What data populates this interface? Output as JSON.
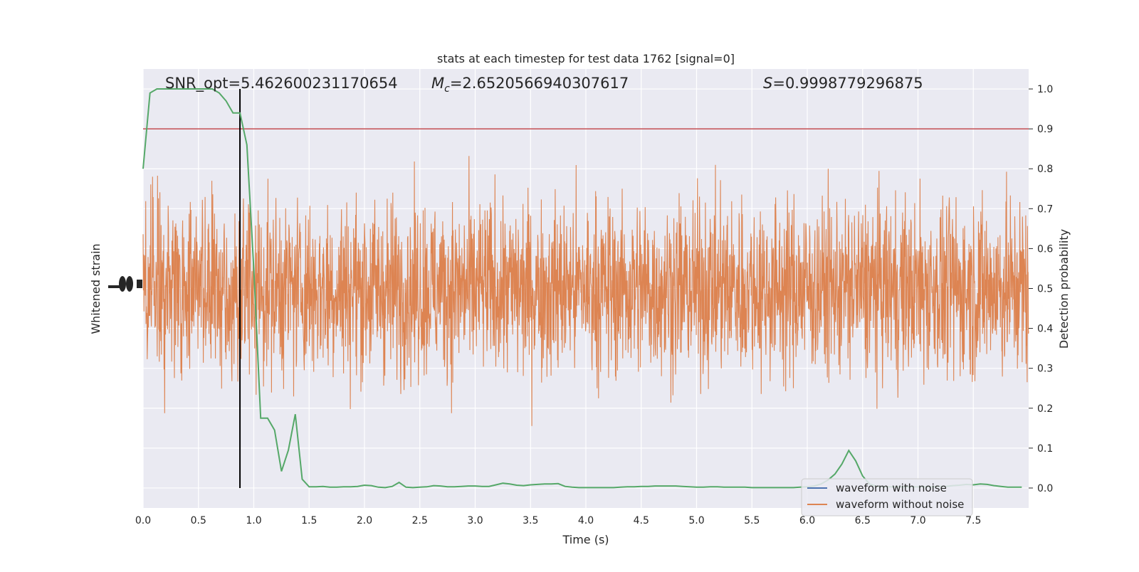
{
  "chart_data": {
    "type": "line",
    "title": "stats at each timestep for test data 1762 [signal=0]",
    "xlabel": "Time (s)",
    "ylabel_left": "Whitened strain",
    "ylabel_right": "Detection probability",
    "xlim": [
      0.0,
      8.0
    ],
    "ylim_right": [
      -0.05,
      1.05
    ],
    "xticks": [
      0.0,
      0.5,
      1.0,
      1.5,
      2.0,
      2.5,
      3.0,
      3.5,
      4.0,
      4.5,
      5.0,
      5.5,
      6.0,
      6.5,
      7.0,
      7.5
    ],
    "yticks_right": [
      0.0,
      0.1,
      0.2,
      0.3,
      0.4,
      0.5,
      0.6,
      0.7,
      0.8,
      0.9,
      1.0
    ],
    "annotations": {
      "snr": "SNR_opt=5.462600231170654",
      "mc_symbol": "M",
      "mc_sub": "c",
      "mc_value": "=2.6520566940307617",
      "s_symbol": "S",
      "s_value": "=0.9998779296875"
    },
    "threshold": 0.9,
    "marker_time": 0.875,
    "grid": true,
    "legend_position": "bottom-right",
    "series": [
      {
        "name": "waveform with noise",
        "color": "#4c72b0"
      },
      {
        "name": "waveform without noise",
        "color": "#dd8452"
      },
      {
        "color": "#55a868",
        "x": [
          0.0,
          0.0625,
          0.125,
          0.1875,
          0.25,
          0.3125,
          0.375,
          0.4375,
          0.5,
          0.5625,
          0.625,
          0.6875,
          0.75,
          0.8125,
          0.875,
          0.9375,
          1.0,
          1.0625,
          1.125,
          1.1875,
          1.25,
          1.3125,
          1.375,
          1.4375,
          1.5,
          1.5625,
          1.625,
          1.6875,
          1.75,
          1.8125,
          1.875,
          1.9375,
          2.0,
          2.0625,
          2.125,
          2.1875,
          2.25,
          2.3125,
          2.375,
          2.4375,
          2.5,
          2.5625,
          2.625,
          2.6875,
          2.75,
          2.8125,
          2.875,
          2.9375,
          3.0,
          3.0625,
          3.125,
          3.1875,
          3.25,
          3.3125,
          3.375,
          3.4375,
          3.5,
          3.5625,
          3.625,
          3.6875,
          3.75,
          3.8125,
          3.875,
          3.9375,
          4.0,
          4.0625,
          4.125,
          4.1875,
          4.25,
          4.3125,
          4.375,
          4.4375,
          4.5,
          4.5625,
          4.625,
          4.6875,
          4.75,
          4.8125,
          4.875,
          4.9375,
          5.0,
          5.0625,
          5.125,
          5.1875,
          5.25,
          5.3125,
          5.375,
          5.4375,
          5.5,
          5.5625,
          5.625,
          5.6875,
          5.75,
          5.8125,
          5.875,
          5.9375,
          6.0,
          6.0625,
          6.125,
          6.1875,
          6.25,
          6.3125,
          6.375,
          6.4375,
          6.5,
          6.5625,
          6.625,
          6.6875,
          6.75,
          6.8125,
          6.875,
          6.9375,
          7.0,
          7.0625,
          7.125,
          7.1875,
          7.25,
          7.3125,
          7.375,
          7.4375,
          7.5,
          7.5625,
          7.625,
          7.6875,
          7.75,
          7.8125,
          7.875,
          7.9375
        ],
        "values": [
          0.8,
          0.99,
          1.0,
          1.0,
          1.0,
          1.0,
          1.0,
          1.0,
          1.0,
          1.0,
          1.0,
          0.99,
          0.97,
          0.94,
          0.94,
          0.86,
          0.55,
          0.175,
          0.175,
          0.145,
          0.042,
          0.095,
          0.185,
          0.022,
          0.003,
          0.003,
          0.004,
          0.002,
          0.002,
          0.003,
          0.003,
          0.004,
          0.007,
          0.006,
          0.002,
          0.001,
          0.004,
          0.014,
          0.002,
          0.001,
          0.002,
          0.003,
          0.006,
          0.005,
          0.003,
          0.003,
          0.004,
          0.005,
          0.005,
          0.004,
          0.004,
          0.008,
          0.012,
          0.01,
          0.007,
          0.006,
          0.008,
          0.009,
          0.01,
          0.01,
          0.011,
          0.004,
          0.002,
          0.001,
          0.001,
          0.001,
          0.001,
          0.001,
          0.001,
          0.002,
          0.003,
          0.003,
          0.004,
          0.004,
          0.005,
          0.005,
          0.005,
          0.005,
          0.004,
          0.003,
          0.002,
          0.002,
          0.003,
          0.003,
          0.002,
          0.002,
          0.002,
          0.002,
          0.001,
          0.001,
          0.001,
          0.001,
          0.001,
          0.001,
          0.001,
          0.002,
          0.003,
          0.005,
          0.01,
          0.02,
          0.035,
          0.06,
          0.094,
          0.068,
          0.03,
          0.01,
          0.004,
          0.003,
          0.003,
          0.003,
          0.003,
          0.003,
          0.003,
          0.003,
          0.003,
          0.004,
          0.004,
          0.006,
          0.007,
          0.009,
          0.008,
          0.01,
          0.009,
          0.006,
          0.004,
          0.002,
          0.002,
          0.002
        ]
      }
    ]
  }
}
